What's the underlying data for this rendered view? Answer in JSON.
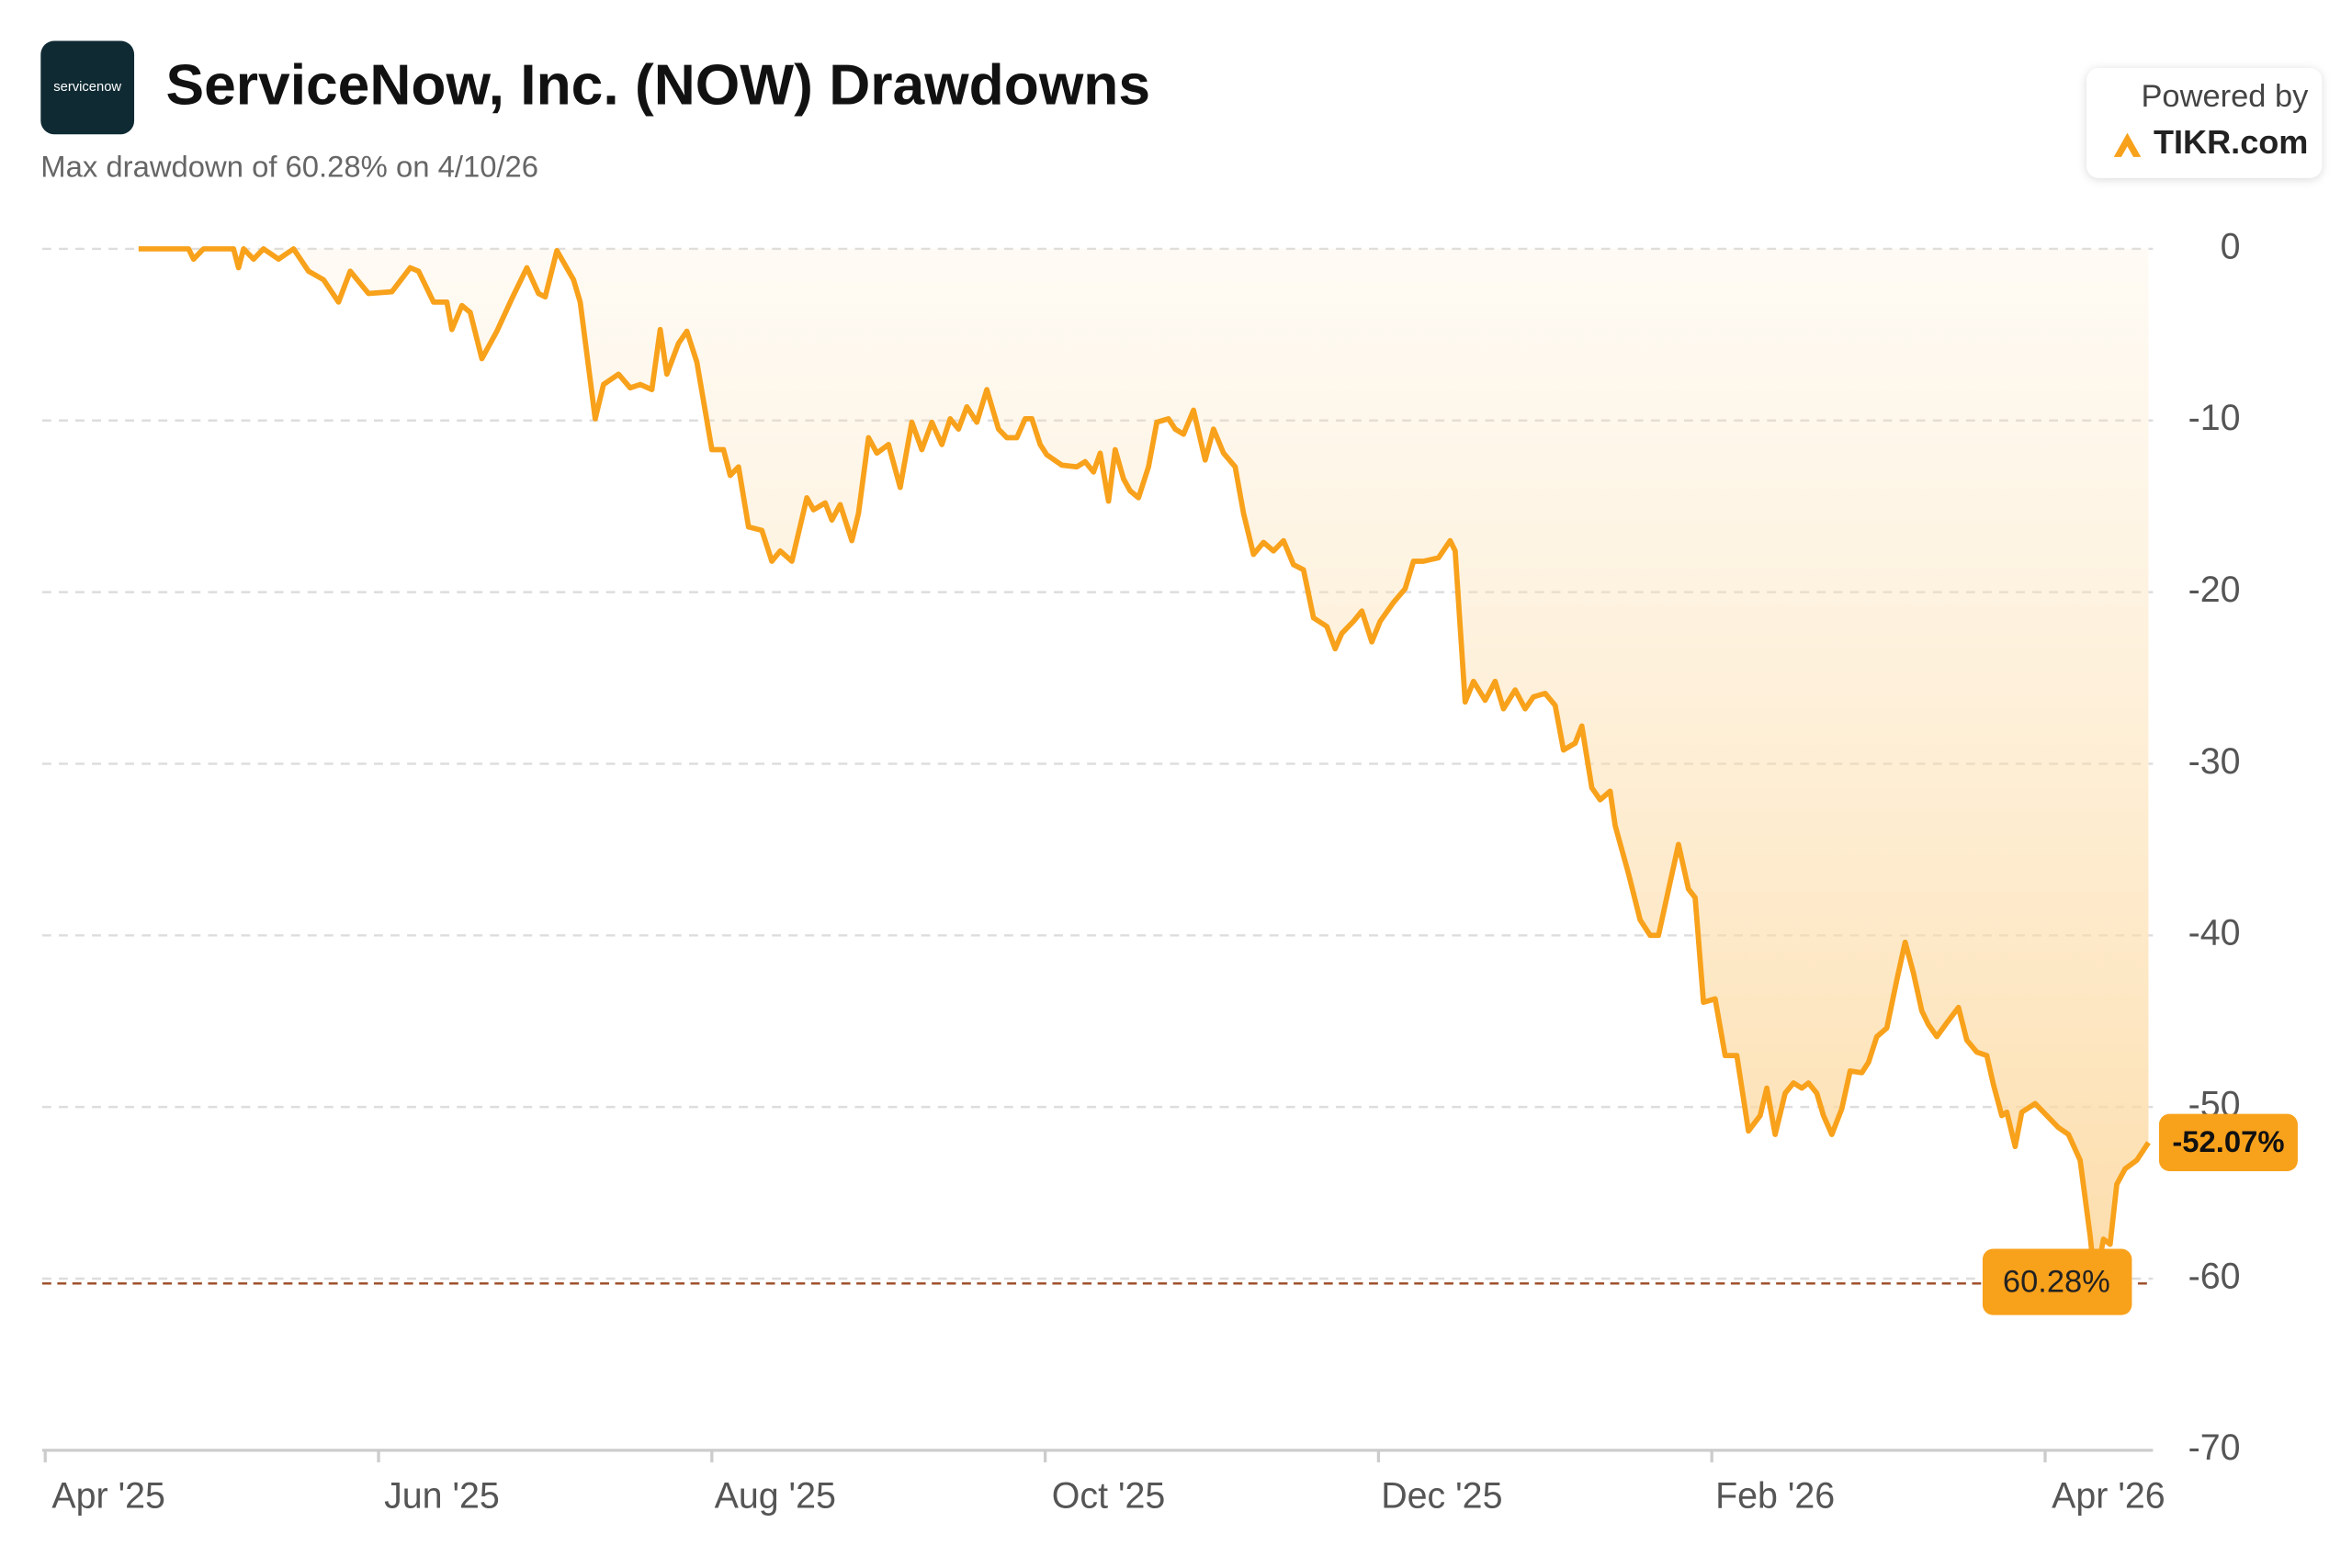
{
  "chart_data": {
    "type": "line",
    "title": "ServiceNow, Inc. (NOW) Drawdowns",
    "subtitle": "Max drawdown of 60.28% on 4/10/26",
    "branding": {
      "logo": "servicenow",
      "powered": "Powered by",
      "site": "TIKR.com"
    },
    "x": [
      0.56,
      0.86,
      0.89,
      0.95,
      1.13,
      1.16,
      1.19,
      1.25,
      1.31,
      1.4,
      1.49,
      1.58,
      1.67,
      1.76,
      1.83,
      1.94,
      2.08,
      2.19,
      2.24,
      2.33,
      2.41,
      2.44,
      2.5,
      2.55,
      2.62,
      2.71,
      2.8,
      2.89,
      2.96,
      3.0,
      3.07,
      3.17,
      3.21,
      3.3,
      3.35,
      3.44,
      3.51,
      3.57,
      3.64,
      3.69,
      3.73,
      3.8,
      3.85,
      3.91,
      4.0,
      4.07,
      4.11,
      4.16,
      4.22,
      4.3,
      4.36,
      4.41,
      4.48,
      4.57,
      4.61,
      4.68,
      4.72,
      4.77,
      4.84,
      4.88,
      4.94,
      4.99,
      5.06,
      5.13,
      5.2,
      5.26,
      5.32,
      5.38,
      5.43,
      5.48,
      5.53,
      5.59,
      5.65,
      5.72,
      5.77,
      5.83,
      5.88,
      5.92,
      5.97,
      6.01,
      6.1,
      6.19,
      6.24,
      6.29,
      6.33,
      6.38,
      6.42,
      6.47,
      6.51,
      6.56,
      6.62,
      6.67,
      6.74,
      6.78,
      6.83,
      6.89,
      6.96,
      7.01,
      7.07,
      7.14,
      7.19,
      7.25,
      7.31,
      7.37,
      7.43,
      7.49,
      7.55,
      7.61,
      7.69,
      7.74,
      7.78,
      7.85,
      7.9,
      7.96,
      8.01,
      8.09,
      8.16,
      8.21,
      8.27,
      8.36,
      8.43,
      8.46,
      8.52,
      8.57,
      8.64,
      8.7,
      8.75,
      8.82,
      8.88,
      8.93,
      9.0,
      9.06,
      9.11,
      9.18,
      9.22,
      9.28,
      9.33,
      9.39,
      9.42,
      9.5,
      9.57,
      9.63,
      9.68,
      9.75,
      9.8,
      9.86,
      9.9,
      9.95,
      10.02,
      10.08,
      10.15,
      10.22,
      10.29,
      10.33,
      10.38,
      10.44,
      10.49,
      10.54,
      10.58,
      10.63,
      10.67,
      10.72,
      10.78,
      10.83,
      10.9,
      10.94,
      10.99,
      11.05,
      11.11,
      11.16,
      11.21,
      11.26,
      11.3,
      11.35,
      11.41,
      11.48,
      11.53,
      11.59,
      11.65,
      11.69,
      11.74,
      11.77,
      11.82,
      11.86,
      11.94,
      12.01,
      12.08,
      12.14,
      12.21,
      12.27,
      12.3,
      12.35,
      12.39,
      12.43,
      12.48,
      12.55,
      12.62
    ],
    "series": [
      {
        "color": "#f8a11b",
        "values": [
          0,
          0,
          -0.6,
          0,
          0,
          -1.1,
          0,
          -0.6,
          0,
          -0.6,
          0,
          -1.3,
          -1.8,
          -3.1,
          -1.3,
          -2.6,
          -2.5,
          -1.1,
          -1.3,
          -3.1,
          -3.1,
          -4.7,
          -3.3,
          -3.7,
          -6.4,
          -4.8,
          -2.9,
          -1.1,
          -2.6,
          -2.8,
          -0.1,
          -1.8,
          -3.1,
          -9.9,
          -7.9,
          -7.3,
          -8.1,
          -7.9,
          -8.2,
          -4.7,
          -7.3,
          -5.5,
          -4.8,
          -6.6,
          -11.7,
          -11.7,
          -13.2,
          -12.7,
          -16.2,
          -16.4,
          -18.2,
          -17.6,
          -18.2,
          -14.5,
          -15.2,
          -14.8,
          -15.8,
          -14.9,
          -17.0,
          -15.4,
          -11.0,
          -11.9,
          -11.4,
          -13.9,
          -10.1,
          -11.7,
          -10.1,
          -11.4,
          -9.9,
          -10.5,
          -9.2,
          -10.1,
          -8.2,
          -10.5,
          -11.0,
          -11.0,
          -9.9,
          -9.9,
          -11.4,
          -12.0,
          -12.6,
          -12.7,
          -12.4,
          -13.0,
          -11.9,
          -14.7,
          -11.7,
          -13.4,
          -14.1,
          -14.5,
          -12.7,
          -10.1,
          -9.9,
          -10.5,
          -10.8,
          -9.4,
          -12.3,
          -10.5,
          -11.9,
          -12.7,
          -15.4,
          -17.8,
          -17.1,
          -17.6,
          -17.0,
          -18.4,
          -18.7,
          -21.5,
          -22.0,
          -23.3,
          -22.4,
          -21.7,
          -21.1,
          -22.9,
          -21.7,
          -20.6,
          -19.8,
          -18.2,
          -18.2,
          -18.0,
          -17.0,
          -17.6,
          -26.4,
          -25.2,
          -26.3,
          -25.2,
          -26.8,
          -25.7,
          -26.8,
          -26.1,
          -25.9,
          -26.6,
          -29.2,
          -28.8,
          -27.8,
          -31.4,
          -32.1,
          -31.6,
          -33.6,
          -36.4,
          -39.1,
          -40.0,
          -40.0,
          -36.9,
          -34.7,
          -37.3,
          -37.8,
          -43.9,
          -43.7,
          -47.0,
          -47.0,
          -51.4,
          -50.5,
          -48.9,
          -51.6,
          -49.2,
          -48.6,
          -48.9,
          -48.6,
          -49.2,
          -50.5,
          -51.6,
          -50.1,
          -47.9,
          -48.0,
          -47.4,
          -45.9,
          -45.4,
          -42.6,
          -40.4,
          -42.2,
          -44.4,
          -45.2,
          -45.9,
          -45.1,
          -44.2,
          -46.1,
          -46.8,
          -47.0,
          -48.7,
          -50.5,
          -50.3,
          -52.3,
          -50.3,
          -49.8,
          -50.5,
          -51.2,
          -51.6,
          -53.1,
          -57.5,
          -60.28,
          -57.7,
          -58.0,
          -54.5,
          -53.6,
          -53.1,
          -52.07
        ]
      }
    ],
    "xlim": [
      0,
      12.62
    ],
    "xticks": [
      {
        "value": 0,
        "label": "Apr '25"
      },
      {
        "value": 2,
        "label": "Jun '25"
      },
      {
        "value": 4,
        "label": "Aug '25"
      },
      {
        "value": 6,
        "label": "Oct '25"
      },
      {
        "value": 8,
        "label": "Dec '25"
      },
      {
        "value": 10,
        "label": "Feb '26"
      },
      {
        "value": 12,
        "label": "Apr '26"
      }
    ],
    "ylim": [
      -70,
      0
    ],
    "yticks": [
      0,
      -10,
      -20,
      -30,
      -40,
      -50,
      -60,
      -70
    ],
    "grid": true,
    "max_drawdown": {
      "value": -60.28,
      "label": "60.28%"
    },
    "last_value": {
      "value": -52.07,
      "label": "-52.07%"
    }
  }
}
